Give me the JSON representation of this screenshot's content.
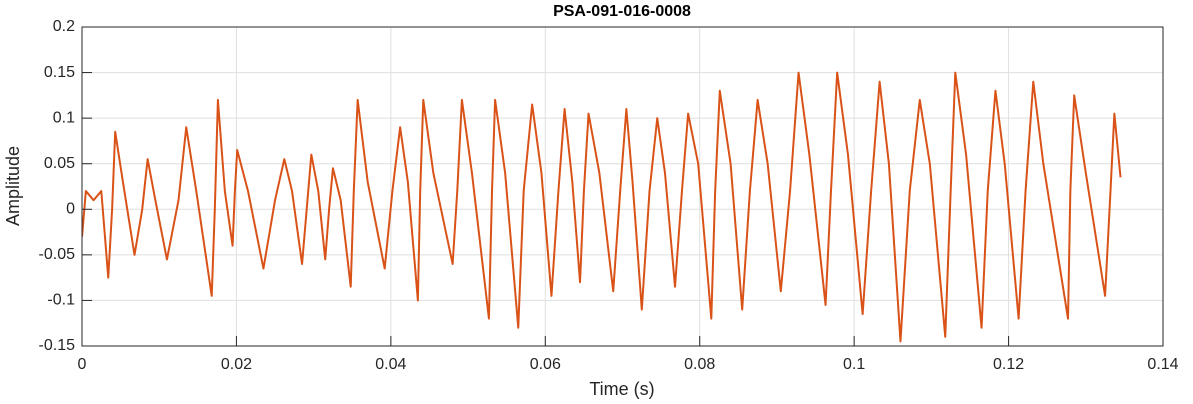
{
  "chart_data": {
    "type": "line",
    "title": "PSA-091-016-0008",
    "x_label": "Time (s)",
    "y_label": "Amplitude",
    "color": "#d95319",
    "grid": true,
    "xlim": [
      0,
      0.14
    ],
    "xticks": [
      0,
      0.02,
      0.04,
      0.06,
      0.08,
      0.1,
      0.12,
      0.14
    ],
    "ylim": [
      -0.15,
      0.2
    ],
    "yticks": [
      -0.15,
      -0.1,
      -0.05,
      0,
      0.05,
      0.1,
      0.15,
      0.2
    ],
    "x": [
      0,
      0.0005,
      0.0015,
      0.0025,
      0.0034,
      0.0039,
      0.0043,
      0.0053,
      0.0068,
      0.0078,
      0.0085,
      0.0095,
      0.011,
      0.0125,
      0.0135,
      0.0148,
      0.0168,
      0.0172,
      0.0176,
      0.0185,
      0.0195,
      0.0198,
      0.0201,
      0.0215,
      0.0235,
      0.025,
      0.0262,
      0.0272,
      0.0285,
      0.0291,
      0.0297,
      0.0306,
      0.0315,
      0.032,
      0.0325,
      0.0335,
      0.0348,
      0.0352,
      0.0357,
      0.037,
      0.0392,
      0.0402,
      0.0412,
      0.0422,
      0.0435,
      0.0438,
      0.0442,
      0.0455,
      0.048,
      0.0486,
      0.0492,
      0.0505,
      0.0527,
      0.0531,
      0.0535,
      0.0548,
      0.0565,
      0.0572,
      0.0583,
      0.0595,
      0.0608,
      0.0617,
      0.0625,
      0.0635,
      0.0645,
      0.065,
      0.0656,
      0.067,
      0.0688,
      0.0697,
      0.0705,
      0.0713,
      0.0725,
      0.0735,
      0.0745,
      0.0755,
      0.0768,
      0.0777,
      0.0785,
      0.0798,
      0.0815,
      0.082,
      0.0826,
      0.084,
      0.0855,
      0.0865,
      0.0875,
      0.0888,
      0.0905,
      0.0917,
      0.0928,
      0.0942,
      0.0963,
      0.097,
      0.0978,
      0.0992,
      0.1011,
      0.1022,
      0.1033,
      0.1045,
      0.106,
      0.1072,
      0.1085,
      0.1098,
      0.1118,
      0.1125,
      0.1131,
      0.1145,
      0.1165,
      0.1173,
      0.1183,
      0.1195,
      0.1213,
      0.1222,
      0.1232,
      0.1245,
      0.1277,
      0.128,
      0.1285,
      0.13,
      0.1325,
      0.1332,
      0.1337,
      0.1345
    ],
    "values": [
      -0.03,
      0.02,
      0.01,
      0.02,
      -0.075,
      0.0,
      0.085,
      0.03,
      -0.05,
      0.0,
      0.055,
      0.01,
      -0.055,
      0.01,
      0.09,
      0.02,
      -0.095,
      0.0,
      0.12,
      0.02,
      -0.04,
      0.02,
      0.065,
      0.02,
      -0.065,
      0.01,
      0.055,
      0.02,
      -0.06,
      0.0,
      0.06,
      0.02,
      -0.055,
      0.0,
      0.045,
      0.01,
      -0.085,
      0.02,
      0.12,
      0.03,
      -0.065,
      0.02,
      0.09,
      0.03,
      -0.1,
      0.02,
      0.12,
      0.04,
      -0.06,
      0.02,
      0.12,
      0.04,
      -0.12,
      0.02,
      0.12,
      0.04,
      -0.13,
      0.02,
      0.115,
      0.04,
      -0.095,
      0.02,
      0.11,
      0.03,
      -0.08,
      0.02,
      0.105,
      0.04,
      -0.09,
      0.02,
      0.11,
      0.03,
      -0.11,
      0.02,
      0.1,
      0.04,
      -0.085,
      0.02,
      0.105,
      0.05,
      -0.12,
      0.02,
      0.13,
      0.05,
      -0.11,
      0.02,
      0.12,
      0.05,
      -0.09,
      0.02,
      0.15,
      0.06,
      -0.105,
      0.02,
      0.15,
      0.06,
      -0.115,
      0.02,
      0.14,
      0.05,
      -0.145,
      0.02,
      0.12,
      0.05,
      -0.14,
      0.02,
      0.15,
      0.06,
      -0.13,
      0.02,
      0.13,
      0.05,
      -0.12,
      0.02,
      0.14,
      0.05,
      -0.12,
      0.02,
      0.125,
      0.04,
      -0.095,
      0.02,
      0.105,
      0.035
    ]
  }
}
